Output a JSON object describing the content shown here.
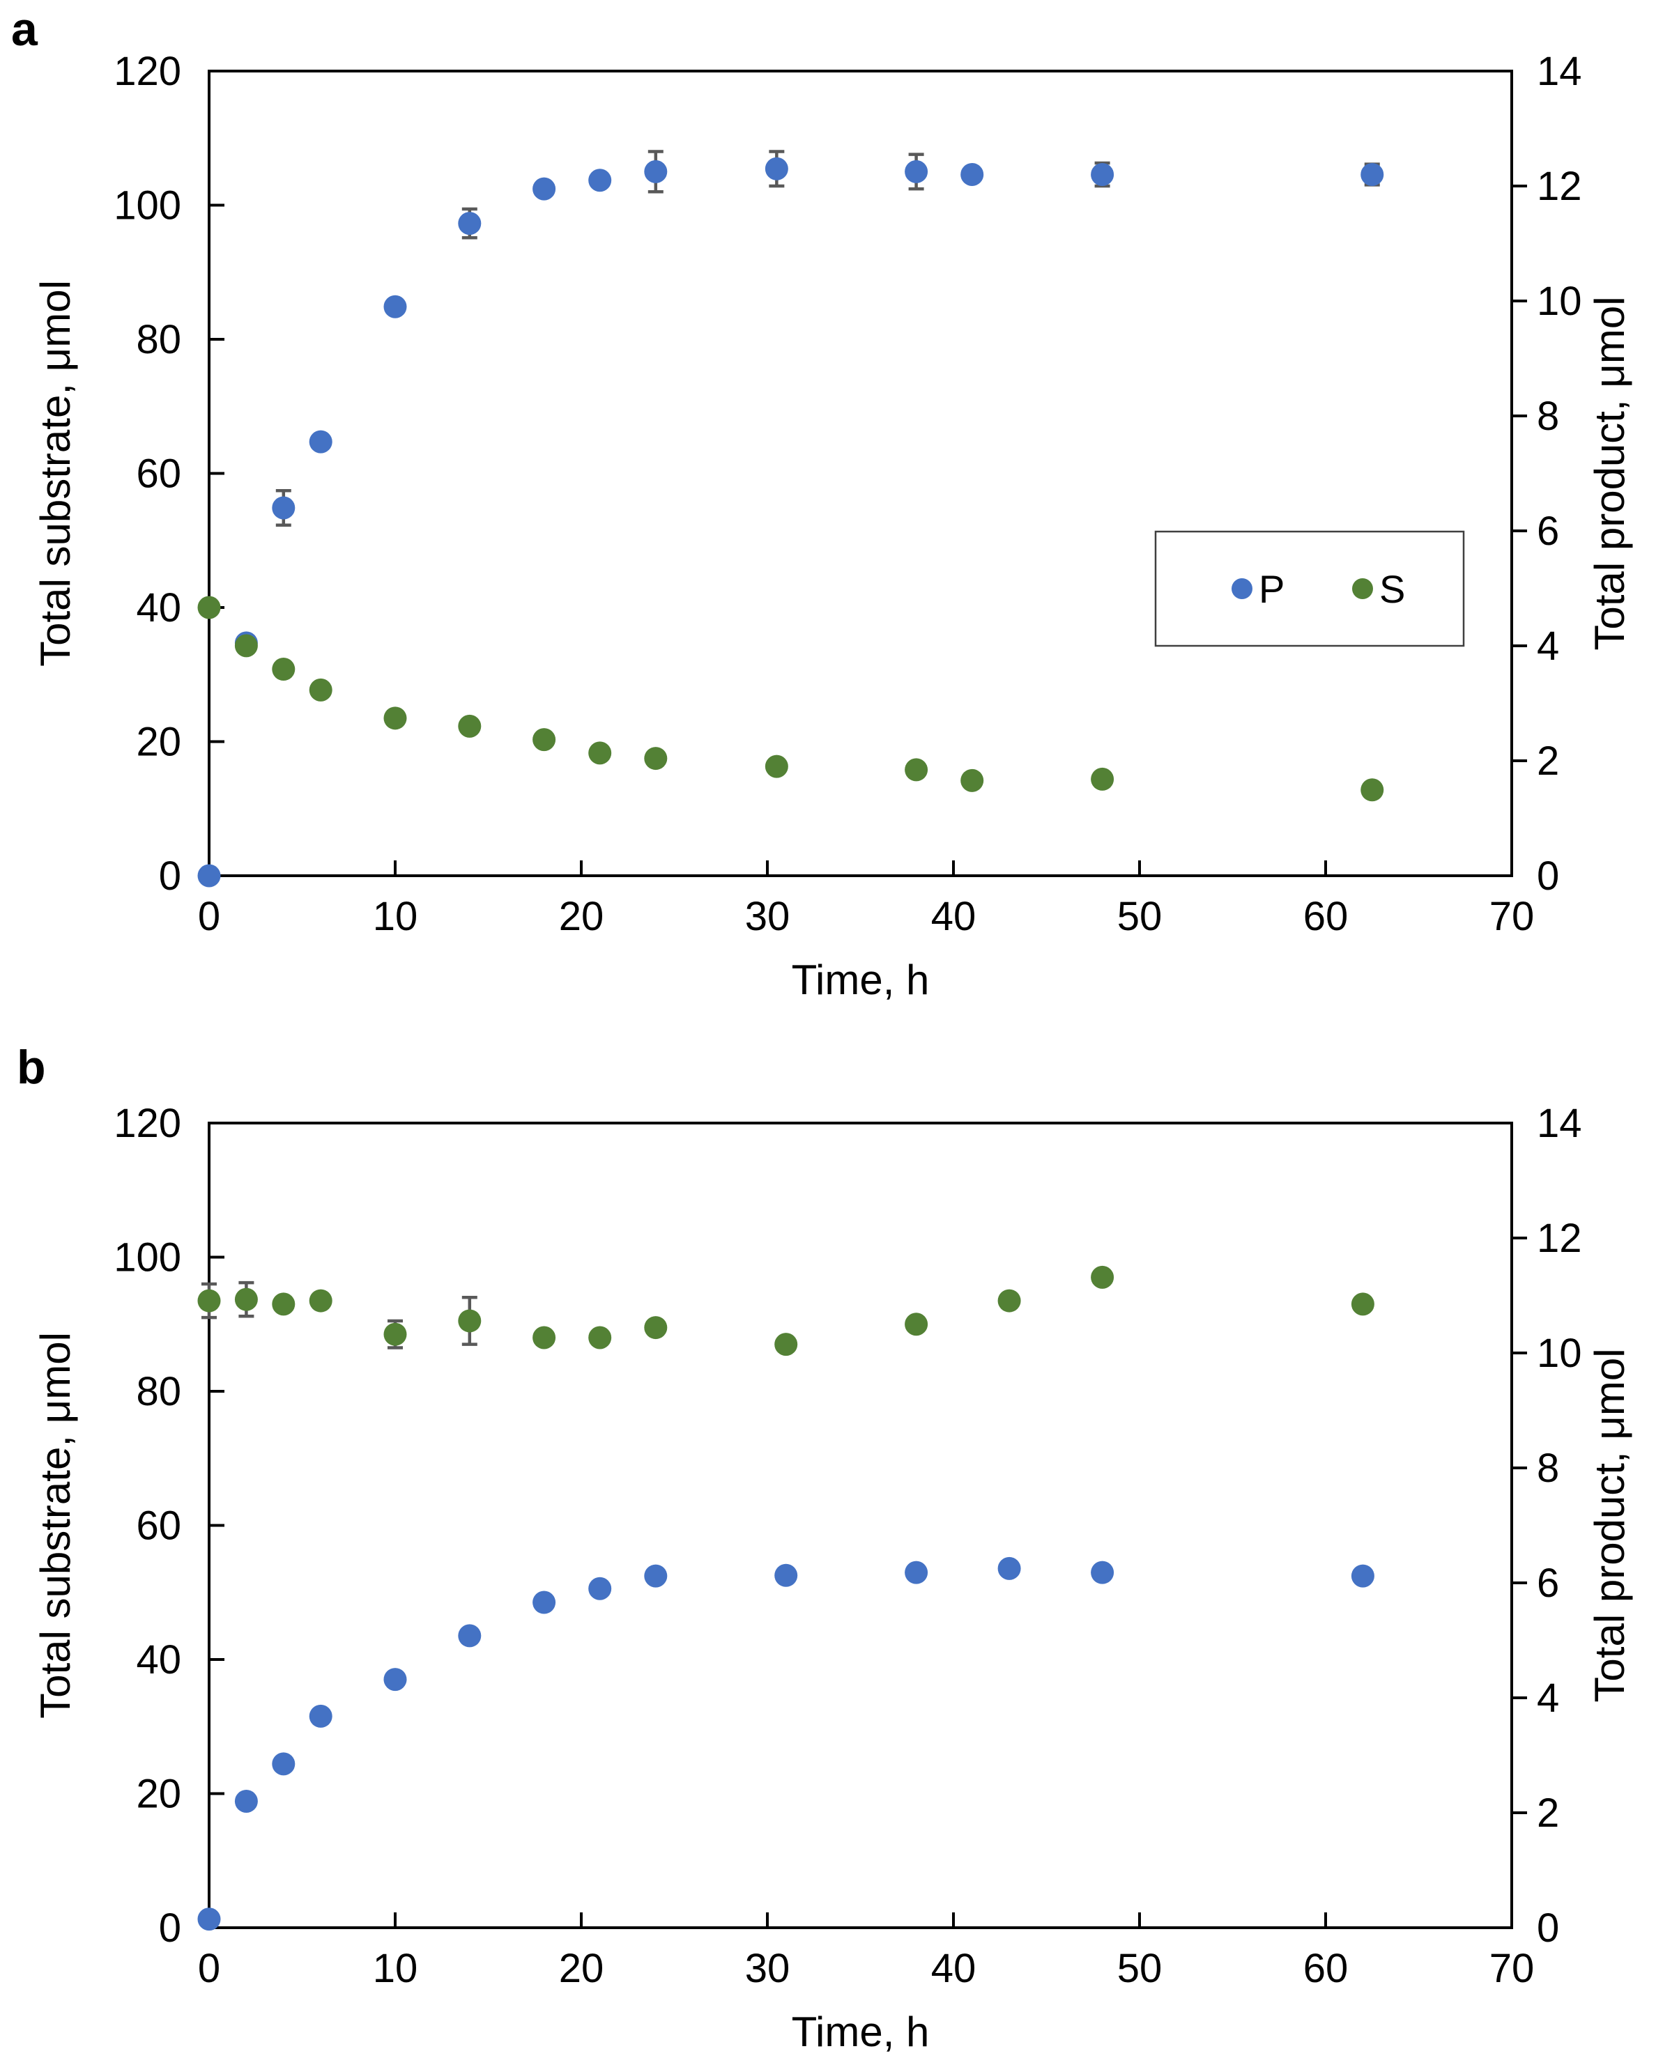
{
  "colors": {
    "P": "#4472C4",
    "S": "#538135",
    "error_bar": "#595959",
    "axis": "#000000"
  },
  "legend": {
    "panel": "a",
    "items": [
      {
        "label": "P",
        "series": "P"
      },
      {
        "label": "S",
        "series": "S"
      }
    ]
  },
  "chart_data": [
    {
      "type": "scatter",
      "panel_label": "a",
      "xlabel": "Time, h",
      "ylabel_left": "Total substrate, μmol",
      "ylabel_right": "Total product, μmol",
      "xlim": [
        0,
        70
      ],
      "ylim_left": [
        0,
        120
      ],
      "ylim_right": [
        0,
        14
      ],
      "x_ticks": [
        0,
        10,
        20,
        30,
        40,
        50,
        60,
        70
      ],
      "y_left_ticks": [
        0,
        20,
        40,
        60,
        80,
        100,
        120
      ],
      "y_right_ticks": [
        0,
        2,
        4,
        6,
        8,
        10,
        12,
        14
      ],
      "has_legend": true,
      "series": [
        {
          "name": "P",
          "axis": "right",
          "x": [
            0,
            2,
            4,
            6,
            10,
            14,
            18,
            21,
            24,
            30.5,
            38,
            41,
            48,
            62.5
          ],
          "y": [
            0,
            4.05,
            6.4,
            7.55,
            9.9,
            11.35,
            11.95,
            12.1,
            12.25,
            12.3,
            12.25,
            12.2,
            12.2,
            12.2
          ],
          "yerr": [
            0,
            0,
            0.3,
            0,
            0,
            0.25,
            0,
            0,
            0.35,
            0.3,
            0.3,
            0,
            0.2,
            0.18
          ]
        },
        {
          "name": "S",
          "axis": "left",
          "x": [
            0,
            2,
            4,
            6,
            10,
            14,
            18,
            21,
            24,
            30.5,
            38,
            41,
            48,
            62.5
          ],
          "y": [
            40,
            34.3,
            30.8,
            27.7,
            23.5,
            22.3,
            20.3,
            18.3,
            17.5,
            16.3,
            15.8,
            14.2,
            14.4,
            12.8
          ],
          "yerr": [
            0,
            0,
            0,
            0,
            0,
            0,
            0,
            0,
            0,
            0,
            0,
            0,
            0,
            0
          ]
        }
      ]
    },
    {
      "type": "scatter",
      "panel_label": "b",
      "xlabel": "Time, h",
      "ylabel_left": "Total substrate, μmol",
      "ylabel_right": "Total product, μmol",
      "xlim": [
        0,
        70
      ],
      "ylim_left": [
        0,
        120
      ],
      "ylim_right": [
        0,
        14
      ],
      "x_ticks": [
        0,
        10,
        20,
        30,
        40,
        50,
        60,
        70
      ],
      "y_left_ticks": [
        0,
        20,
        40,
        60,
        80,
        100,
        120
      ],
      "y_right_ticks": [
        0,
        2,
        4,
        6,
        8,
        10,
        12,
        14
      ],
      "has_legend": false,
      "series": [
        {
          "name": "P",
          "axis": "right",
          "x": [
            0,
            2,
            4,
            6,
            10,
            14,
            18,
            21,
            24,
            31,
            38,
            43,
            48,
            62
          ],
          "y": [
            0.15,
            2.2,
            2.85,
            3.68,
            4.32,
            5.08,
            5.66,
            5.9,
            6.12,
            6.13,
            6.18,
            6.25,
            6.18,
            6.12
          ],
          "yerr": [
            0,
            0,
            0,
            0,
            0,
            0,
            0,
            0,
            0,
            0,
            0,
            0,
            0,
            0
          ]
        },
        {
          "name": "S",
          "axis": "left",
          "x": [
            0,
            2,
            4,
            6,
            10,
            14,
            18,
            21,
            24,
            31,
            38,
            43,
            48,
            62
          ],
          "y": [
            93.5,
            93.7,
            93.0,
            93.5,
            88.5,
            90.5,
            88.0,
            88.0,
            89.5,
            87.0,
            90.0,
            93.5,
            97.0,
            93.0
          ],
          "yerr": [
            2.5,
            2.5,
            0,
            0,
            2.0,
            3.5,
            0,
            0,
            0,
            0,
            0,
            0,
            0,
            0
          ]
        }
      ]
    }
  ]
}
